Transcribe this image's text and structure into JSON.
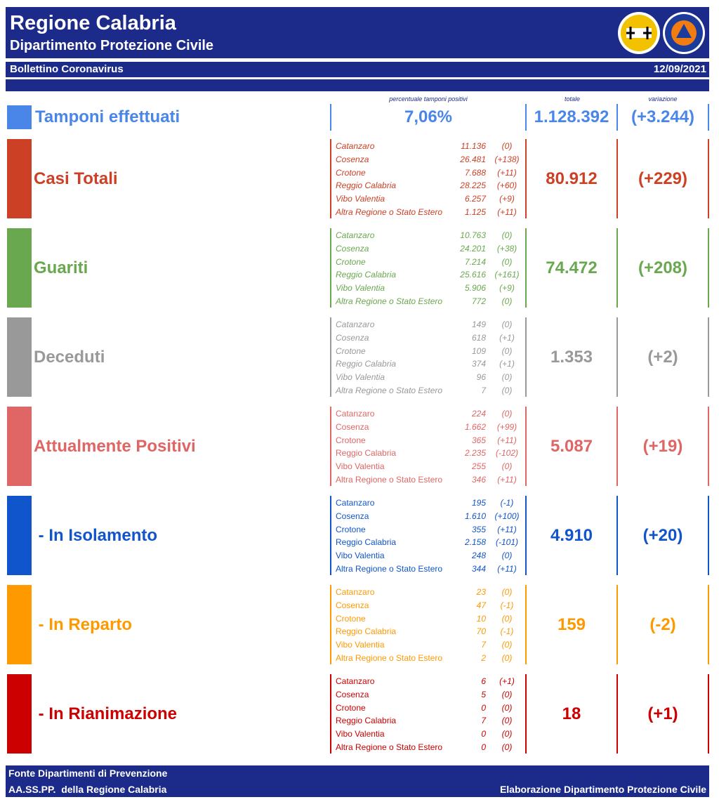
{
  "header": {
    "title": "Regione Calabria",
    "subtitle": "Dipartimento Protezione Civile",
    "bulletin": "Bollettino Coronavirus",
    "date": "12/09/2021"
  },
  "tamponi": {
    "label": "Tamponi effettuati",
    "color": "#4a86e8",
    "pct_caption": "percentuale tamponi positivi",
    "pct": "7,06%",
    "total_caption": "totale",
    "total": "1.128.392",
    "variation_caption": "variazione",
    "variation": "(+3.244)"
  },
  "sections": [
    {
      "label": "Casi Totali",
      "color": "#cc4125",
      "total": "80.912",
      "variation": "(+229)",
      "rows": [
        [
          "Catanzaro",
          "11.136",
          "(0)"
        ],
        [
          "Cosenza",
          "26.481",
          "(+138)"
        ],
        [
          "Crotone",
          "7.688",
          "(+11)"
        ],
        [
          "Reggio Calabria",
          "28.225",
          "(+60)"
        ],
        [
          "Vibo Valentia",
          "6.257",
          "(+9)"
        ],
        [
          "Altra Regione o Stato Estero",
          "1.125",
          "(+11)"
        ]
      ]
    },
    {
      "label": "Guariti",
      "color": "#6aa84f",
      "total": "74.472",
      "variation": "(+208)",
      "rows": [
        [
          "Catanzaro",
          "10.763",
          "(0)"
        ],
        [
          "Cosenza",
          "24.201",
          "(+38)"
        ],
        [
          "Crotone",
          "7.214",
          "(0)"
        ],
        [
          "Reggio Calabria",
          "25.616",
          "(+161)"
        ],
        [
          "Vibo Valentia",
          "5.906",
          "(+9)"
        ],
        [
          "Altra Regione o Stato Estero",
          "772",
          "(0)"
        ]
      ]
    },
    {
      "label": "Deceduti",
      "color": "#999999",
      "total": "1.353",
      "variation": "(+2)",
      "rows": [
        [
          "Catanzaro",
          "149",
          "(0)"
        ],
        [
          "Cosenza",
          "618",
          "(+1)"
        ],
        [
          "Crotone",
          "109",
          "(0)"
        ],
        [
          "Reggio Calabria",
          "374",
          "(+1)"
        ],
        [
          "Vibo Valentia",
          "96",
          "(0)"
        ],
        [
          "Altra Regione o Stato Estero",
          "7",
          "(0)"
        ]
      ]
    },
    {
      "label": "Attualmente Positivi",
      "color": "#e06666",
      "total": "5.087",
      "variation": "(+19)",
      "rows": [
        [
          "Catanzaro",
          "224",
          "(0)"
        ],
        [
          "Cosenza",
          "1.662",
          "(+99)"
        ],
        [
          "Crotone",
          "365",
          "(+11)"
        ],
        [
          "Reggio Calabria",
          "2.235",
          "(-102)"
        ],
        [
          "Vibo Valentia",
          "255",
          "(0)"
        ],
        [
          "Altra Regione o Stato Estero",
          "346",
          "(+11)"
        ]
      ]
    },
    {
      "label": " - In Isolamento",
      "color": "#1155cc",
      "total": "4.910",
      "variation": "(+20)",
      "rows": [
        [
          "Catanzaro",
          "195",
          "(-1)"
        ],
        [
          "Cosenza",
          "1.610",
          "(+100)"
        ],
        [
          "Crotone",
          "355",
          "(+11)"
        ],
        [
          "Reggio Calabria",
          "2.158",
          "(-101)"
        ],
        [
          "Vibo Valentia",
          "248",
          "(0)"
        ],
        [
          "Altra Regione o Stato Estero",
          "344",
          "(+11)"
        ]
      ]
    },
    {
      "label": " - In Reparto",
      "color": "#ff9900",
      "total": "159",
      "variation": "(-2)",
      "rows": [
        [
          "Catanzaro",
          "23",
          "(0)"
        ],
        [
          "Cosenza",
          "47",
          "(-1)"
        ],
        [
          "Crotone",
          "10",
          "(0)"
        ],
        [
          "Reggio Calabria",
          "70",
          "(-1)"
        ],
        [
          "Vibo Valentia",
          "7",
          "(0)"
        ],
        [
          "Altra Regione o Stato Estero",
          "2",
          "(0)"
        ]
      ]
    },
    {
      "label": " - In Rianimazione",
      "color": "#cc0000",
      "total": "18",
      "variation": "(+1)",
      "rows": [
        [
          "Catanzaro",
          "6",
          "(+1)"
        ],
        [
          "Cosenza",
          "5",
          "(0)"
        ],
        [
          "Crotone",
          "0",
          "(0)"
        ],
        [
          "Reggio Calabria",
          "7",
          "(0)"
        ],
        [
          "Vibo Valentia",
          "0",
          "(0)"
        ],
        [
          "Altra Regione o Stato Estero",
          "0",
          "(0)"
        ]
      ]
    }
  ],
  "footer": {
    "line1": "Fonte Dipartimenti di Prevenzione",
    "line2": "AA.SS.PP.  della Regione Calabria",
    "credit": "Elaborazione Dipartimento Protezione Civile"
  }
}
